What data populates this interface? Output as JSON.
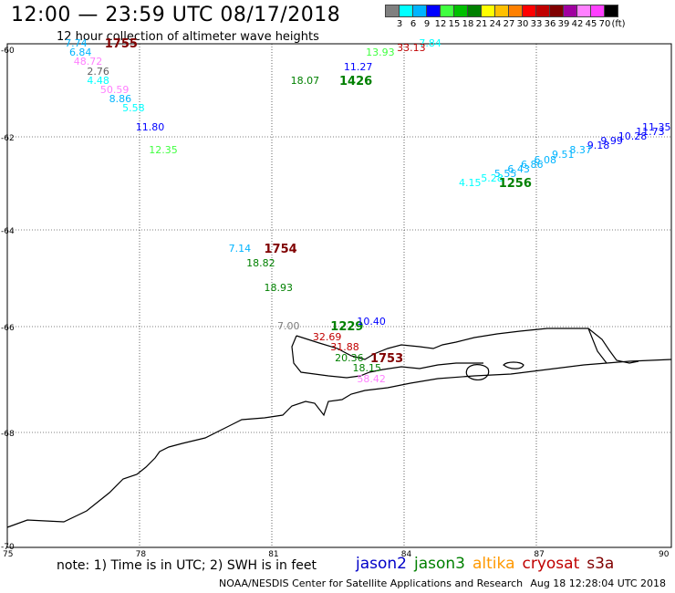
{
  "title": "12:00 — 23:59 UTC 08/17/2018",
  "subtitle": "12 hour collection of altimeter wave heights",
  "scale": {
    "colors": [
      "#808080",
      "#00ffff",
      "#00b4ff",
      "#0000ff",
      "#40ff40",
      "#00c000",
      "#008000",
      "#ffff00",
      "#ffc000",
      "#ff8000",
      "#ff0000",
      "#c00000",
      "#800000",
      "#a000a0",
      "#ff80ff",
      "#ff40ff",
      "#000000"
    ],
    "labels": [
      "3",
      "6",
      "9",
      "12",
      "15",
      "18",
      "21",
      "24",
      "27",
      "30",
      "33",
      "36",
      "39",
      "42",
      "45",
      "70",
      "(ft)"
    ]
  },
  "axes": {
    "x_ticks": [
      "75",
      "78",
      "81",
      "84",
      "87",
      "90"
    ],
    "y_ticks": [
      "-60",
      "-62",
      "-64",
      "-66",
      "-68",
      "-70"
    ]
  },
  "labels": [
    {
      "text": "7.74",
      "color": "#00b4ff",
      "lon": 76.3,
      "lat": -60.0
    },
    {
      "text": "1755",
      "color": "#800000",
      "lon": 77.2,
      "lat": -60.0,
      "big": true
    },
    {
      "text": "6.84",
      "color": "#00b4ff",
      "lon": 76.4,
      "lat": -60.2
    },
    {
      "text": "48.72",
      "color": "#ff80ff",
      "lon": 76.5,
      "lat": -60.4
    },
    {
      "text": "2.76",
      "color": "#606060",
      "lon": 76.8,
      "lat": -60.6
    },
    {
      "text": "4.48",
      "color": "#00ffff",
      "lon": 76.8,
      "lat": -60.8
    },
    {
      "text": "50.59",
      "color": "#ff80ff",
      "lon": 77.1,
      "lat": -61.0
    },
    {
      "text": "8.86",
      "color": "#00b4ff",
      "lon": 77.3,
      "lat": -61.2
    },
    {
      "text": "5.58",
      "color": "#00ffff",
      "lon": 77.6,
      "lat": -61.4
    },
    {
      "text": "11.80",
      "color": "#0000ff",
      "lon": 77.9,
      "lat": -61.8
    },
    {
      "text": "12.35",
      "color": "#40ff40",
      "lon": 78.2,
      "lat": -62.3
    },
    {
      "text": "7.84",
      "color": "#00ffff",
      "lon": 84.3,
      "lat": -59.9
    },
    {
      "text": "33.13",
      "color": "#c00000",
      "lon": 83.8,
      "lat": -60.1
    },
    {
      "text": "13.93",
      "color": "#40ff40",
      "lon": 83.1,
      "lat": -60.2
    },
    {
      "text": "11.27",
      "color": "#0000ff",
      "lon": 82.6,
      "lat": -60.5
    },
    {
      "text": "18.07",
      "color": "#008000",
      "lon": 81.4,
      "lat": -60.8
    },
    {
      "text": "1426",
      "color": "#008000",
      "lon": 82.5,
      "lat": -60.8,
      "big": true
    },
    {
      "text": "11.35",
      "color": "#0000ff",
      "lon": 89.6,
      "lat": -61.8
    },
    {
      "text": "11.73",
      "color": "#0000ff",
      "lon": 89.2,
      "lat": -61.9
    },
    {
      "text": "10.28",
      "color": "#0000ff",
      "lon": 88.8,
      "lat": -62.0
    },
    {
      "text": "9.99",
      "color": "#0000ff",
      "lon": 88.4,
      "lat": -62.1
    },
    {
      "text": "9.18",
      "color": "#0000ff",
      "lon": 88.1,
      "lat": -62.2
    },
    {
      "text": "8.37",
      "color": "#00b4ff",
      "lon": 87.7,
      "lat": -62.3
    },
    {
      "text": "9.51",
      "color": "#00b4ff",
      "lon": 87.3,
      "lat": -62.4
    },
    {
      "text": "6.08",
      "color": "#00b4ff",
      "lon": 86.9,
      "lat": -62.5
    },
    {
      "text": "6.86",
      "color": "#00b4ff",
      "lon": 86.6,
      "lat": -62.6
    },
    {
      "text": "6.43",
      "color": "#00b4ff",
      "lon": 86.3,
      "lat": -62.7
    },
    {
      "text": "5.55",
      "color": "#00b4ff",
      "lon": 86.0,
      "lat": -62.8
    },
    {
      "text": "5.28",
      "color": "#00ffff",
      "lon": 85.7,
      "lat": -62.9
    },
    {
      "text": "4.15",
      "color": "#00ffff",
      "lon": 85.2,
      "lat": -63.0
    },
    {
      "text": "1256",
      "color": "#008000",
      "lon": 86.1,
      "lat": -63.0,
      "big": true
    },
    {
      "text": "7.14",
      "color": "#00b4ff",
      "lon": 80.0,
      "lat": -64.4
    },
    {
      "text": "1754",
      "color": "#800000",
      "lon": 80.8,
      "lat": -64.4,
      "big": true
    },
    {
      "text": "18.82",
      "color": "#008000",
      "lon": 80.4,
      "lat": -64.7
    },
    {
      "text": "18.93",
      "color": "#008000",
      "lon": 80.8,
      "lat": -65.2
    },
    {
      "text": "7.00",
      "color": "#808080",
      "lon": 81.1,
      "lat": -66.0
    },
    {
      "text": "1229",
      "color": "#008000",
      "lon": 82.3,
      "lat": -66.0,
      "big": true
    },
    {
      "text": "10.40",
      "color": "#0000ff",
      "lon": 82.9,
      "lat": -65.9
    },
    {
      "text": "32.69",
      "color": "#c00000",
      "lon": 81.9,
      "lat": -66.2
    },
    {
      "text": "31.88",
      "color": "#c00000",
      "lon": 82.3,
      "lat": -66.4
    },
    {
      "text": "20.36",
      "color": "#008000",
      "lon": 82.4,
      "lat": -66.6
    },
    {
      "text": "1753",
      "color": "#800000",
      "lon": 83.2,
      "lat": -66.6,
      "big": true
    },
    {
      "text": "18.15",
      "color": "#008000",
      "lon": 82.8,
      "lat": -66.8
    },
    {
      "text": "58.42",
      "color": "#ff80ff",
      "lon": 82.9,
      "lat": -67.0
    }
  ],
  "note": "note: 1) Time is in UTC; 2) SWH is in feet",
  "satellites": [
    {
      "name": "jason2",
      "color": "#0000c8"
    },
    {
      "name": "jason3",
      "color": "#008000"
    },
    {
      "name": "altika",
      "color": "#ff9900"
    },
    {
      "name": "cryosat",
      "color": "#c00000"
    },
    {
      "name": "s3a",
      "color": "#800000"
    }
  ],
  "footer": {
    "source": "NOAA/NESDIS Center for Satellite Applications and Research",
    "timestamp": "Aug 18 12:28:04 UTC 2018"
  }
}
